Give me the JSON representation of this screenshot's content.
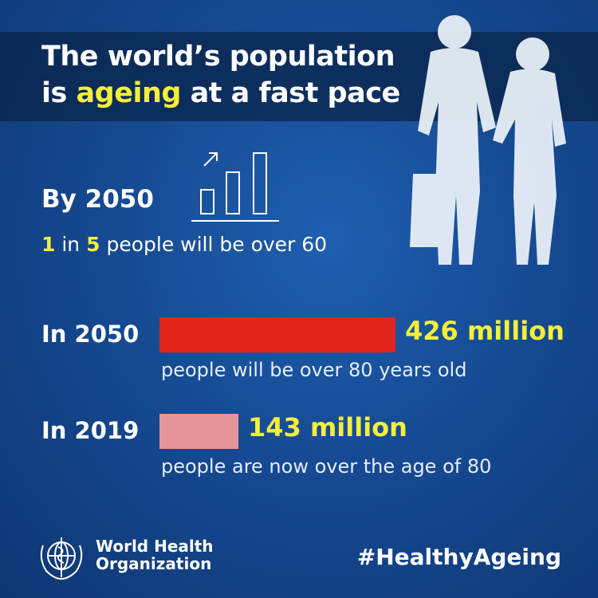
{
  "title": {
    "line1": "The world’s population",
    "line2_prefix": "is",
    "line2_highlight": "ageing",
    "line2_suffix": "at a fast pace"
  },
  "headline_stat": {
    "year": "By 2050",
    "num1": "1",
    "in_word": "in",
    "num2": "5",
    "rest": "people will be over 60"
  },
  "chart_data": {
    "type": "bar",
    "orientation": "horizontal",
    "categories": [
      "In 2050",
      "In 2019"
    ],
    "values": [
      426,
      143
    ],
    "value_labels": [
      "426 million",
      "143 million"
    ],
    "captions": [
      "people will be over 80 years old",
      "people are now over the age of 80"
    ],
    "colors": [
      "#e1251b",
      "#e3959a"
    ],
    "unit": "million"
  },
  "footer": {
    "org_line1": "World Health",
    "org_line2": "Organization",
    "hashtag": "#HealthyAgeing"
  },
  "icons": [
    "growth-bars-icon",
    "who-emblem-icon",
    "elderly-couple-silhouette"
  ],
  "colors": {
    "highlight": "#f5ef3a",
    "background": "#164a92"
  }
}
